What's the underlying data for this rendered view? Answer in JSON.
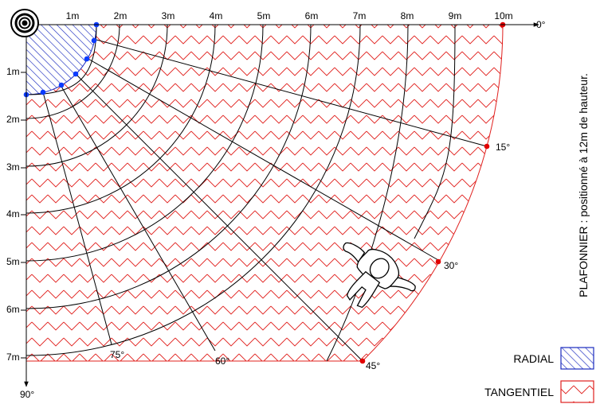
{
  "diagram": {
    "caption": "PLAFONNIER : positionné à 12m de hauteur.",
    "x_axis_labels": [
      "1m",
      "2m",
      "3m",
      "4m",
      "5m",
      "6m",
      "7m",
      "8m",
      "9m",
      "10m"
    ],
    "y_axis_labels": [
      "1m",
      "2m",
      "3m",
      "4m",
      "5m",
      "6m",
      "7m"
    ],
    "angle_labels": [
      "0°",
      "15°",
      "30°",
      "45°",
      "60°",
      "75°",
      "90°"
    ],
    "legend": [
      {
        "label": "RADIAL",
        "pattern": "radial"
      },
      {
        "label": "TANGENTIEL",
        "pattern": "tangential"
      }
    ],
    "colors": {
      "radial_zone": "#1a2bbf",
      "radial_dots": "#0b3bff",
      "tangential_zone": "#e0201e",
      "tangential_dots": "#e10000",
      "lines": "#000000"
    },
    "icons": {
      "sensor": "ceiling-sensor-icon",
      "person": "walking-person-icon"
    }
  }
}
